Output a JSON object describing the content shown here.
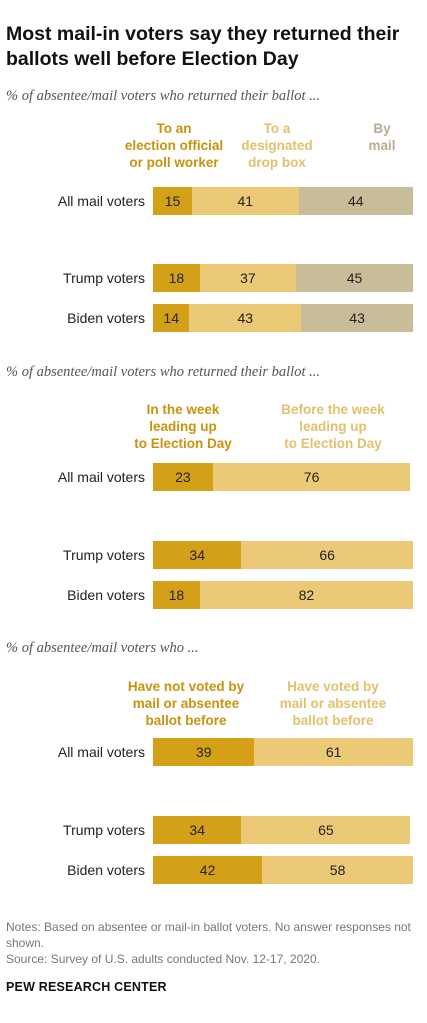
{
  "title": "Most mail-in voters say they returned their ballots well before Election Day",
  "notes": {
    "line1": "Notes: Based on absentee or mail-in ballot voters. No answer responses not shown.",
    "line2": "Source: Survey of U.S. adults conducted Nov. 12-17, 2020."
  },
  "brand": "PEW RESEARCH CENTER",
  "colors": {
    "dark": "#d4a017",
    "light": "#ebc976",
    "gray": "#c9bc98",
    "dark_text": "#c9930b",
    "light_text": "#e3c06b",
    "gray_text": "#b9ad8e"
  },
  "chart_data": [
    {
      "type": "bar",
      "stacked": true,
      "orientation": "horizontal",
      "subtitle": "% of absentee/mail voters who returned their ballot ...",
      "categories": [
        "All mail voters",
        "Trump voters",
        "Biden voters"
      ],
      "series": [
        {
          "name": "To an election official or poll worker",
          "values": [
            15,
            18,
            14
          ]
        },
        {
          "name": "To a designated drop box",
          "values": [
            41,
            37,
            43
          ]
        },
        {
          "name": "By mail",
          "values": [
            44,
            45,
            43
          ]
        }
      ]
    },
    {
      "type": "bar",
      "stacked": true,
      "orientation": "horizontal",
      "subtitle": "% of absentee/mail voters who returned their ballot ...",
      "categories": [
        "All mail voters",
        "Trump voters",
        "Biden voters"
      ],
      "series": [
        {
          "name": "In the week leading up to Election Day",
          "values": [
            23,
            34,
            18
          ]
        },
        {
          "name": "Before the week leading up to Election Day",
          "values": [
            76,
            66,
            82
          ]
        }
      ]
    },
    {
      "type": "bar",
      "stacked": true,
      "orientation": "horizontal",
      "subtitle": "% of absentee/mail voters who ...",
      "categories": [
        "All mail voters",
        "Trump voters",
        "Biden voters"
      ],
      "series": [
        {
          "name": "Have not voted by mail or absentee ballot before",
          "values": [
            39,
            34,
            42
          ]
        },
        {
          "name": "Have voted by mail or absentee ballot before",
          "values": [
            61,
            65,
            58
          ]
        }
      ]
    }
  ]
}
